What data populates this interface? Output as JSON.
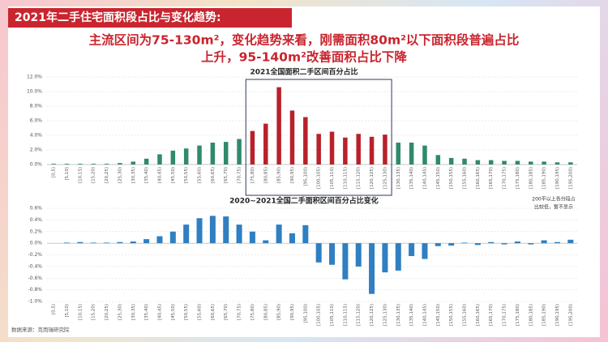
{
  "header": {
    "title": "2021年二手住宅面积段占比与变化趋势:",
    "subtitle": [
      "主流区间为75-130m²，变化趋势来看，刚需面积80m²以下面积段普遍占比",
      "上升，95-140m²改善面积占比下降"
    ]
  },
  "chart_data": [
    {
      "type": "bar",
      "title": "2021全国面积二手区间百分占比",
      "categories": [
        "[0,5)",
        "[5,10)",
        "[10,15)",
        "[15,20)",
        "[20,25)",
        "[25,30)",
        "[30,35)",
        "[35,40)",
        "[40,45)",
        "[45,50)",
        "[50,55)",
        "[55,60)",
        "[60,65)",
        "[65,70)",
        "[70,75)",
        "[75,80)",
        "[80,85)",
        "[85,90)",
        "[90,95)",
        "[95,100)",
        "[100,105)",
        "[105,110)",
        "[110,115)",
        "[115,120)",
        "[120,125)",
        "[125,130)",
        "[130,135)",
        "[135,140)",
        "[140,145)",
        "[145,150)",
        "[150,155)",
        "[155,160)",
        "[160,165)",
        "[165,170)",
        "[170,175)",
        "[175,180)",
        "[180,185)",
        "[185,190)",
        "[190,195)",
        "[195,200)"
      ],
      "values": [
        0.1,
        0.1,
        0.1,
        0.1,
        0.1,
        0.2,
        0.4,
        0.8,
        1.4,
        1.9,
        2.2,
        2.6,
        3.0,
        3.1,
        3.5,
        4.6,
        5.6,
        10.6,
        7.4,
        6.5,
        4.2,
        4.5,
        3.7,
        4.2,
        3.8,
        4.1,
        3.0,
        3.0,
        2.6,
        1.3,
        0.9,
        0.8,
        0.6,
        0.6,
        0.5,
        0.5,
        0.4,
        0.4,
        0.3,
        0.3
      ],
      "colors": [
        "#2f8a6c",
        "#2f8a6c",
        "#2f8a6c",
        "#2f8a6c",
        "#2f8a6c",
        "#2f8a6c",
        "#2f8a6c",
        "#2f8a6c",
        "#2f8a6c",
        "#2f8a6c",
        "#2f8a6c",
        "#2f8a6c",
        "#2f8a6c",
        "#2f8a6c",
        "#2f8a6c",
        "#b8212b",
        "#b8212b",
        "#b8212b",
        "#b8212b",
        "#b8212b",
        "#b8212b",
        "#b8212b",
        "#b8212b",
        "#b8212b",
        "#b8212b",
        "#b8212b",
        "#2f8a6c",
        "#2f8a6c",
        "#2f8a6c",
        "#2f8a6c",
        "#2f8a6c",
        "#2f8a6c",
        "#2f8a6c",
        "#2f8a6c",
        "#2f8a6c",
        "#2f8a6c",
        "#2f8a6c",
        "#2f8a6c",
        "#2f8a6c",
        "#2f8a6c"
      ],
      "ylim": [
        0,
        12
      ],
      "yticks": [
        {
          "value": 0,
          "label": "0.0%"
        },
        {
          "value": 2,
          "label": "2.0%"
        },
        {
          "value": 4,
          "label": "4.0%"
        },
        {
          "value": 6,
          "label": "6.0%"
        },
        {
          "value": 8,
          "label": "8.0%"
        },
        {
          "value": 10,
          "label": "10.0%"
        },
        {
          "value": 12,
          "label": "12.0%"
        }
      ],
      "grid": true
    },
    {
      "type": "bar",
      "title": "2020~2021全国二手面积区间百分占比变化",
      "categories": [
        "[0,5)",
        "[5,10)",
        "[10,15)",
        "[15,20)",
        "[20,25)",
        "[25,30)",
        "[30,35)",
        "[35,40)",
        "[40,45)",
        "[45,50)",
        "[50,55)",
        "[55,60)",
        "[60,65)",
        "[65,70)",
        "[70,75)",
        "[75,80)",
        "[80,85)",
        "[85,90)",
        "[90,95)",
        "[95,100)",
        "[100,105)",
        "[105,110)",
        "[110,115)",
        "[115,120)",
        "[120,125)",
        "[125,130)",
        "[130,135)",
        "[135,140)",
        "[140,145)",
        "[145,150)",
        "[150,155)",
        "[155,160)",
        "[160,165)",
        "[165,170)",
        "[170,175)",
        "[175,180)",
        "[180,185)",
        "[185,190)",
        "[190,195)",
        "[195,200)"
      ],
      "values": [
        0.0,
        0.01,
        0.02,
        0.01,
        0.01,
        0.02,
        0.03,
        0.07,
        0.12,
        0.2,
        0.32,
        0.43,
        0.47,
        0.46,
        0.32,
        0.2,
        0.05,
        0.32,
        0.17,
        0.31,
        -0.33,
        -0.37,
        -0.62,
        -0.4,
        -0.87,
        -0.5,
        -0.47,
        -0.22,
        -0.27,
        -0.05,
        -0.04,
        0.01,
        -0.03,
        0.02,
        -0.02,
        0.03,
        -0.02,
        0.05,
        0.02,
        0.06
      ],
      "color": "#2f7fc1",
      "ylim": [
        -1.0,
        0.6
      ],
      "yticks": [
        {
          "value": -1.0,
          "label": "-1.0%"
        },
        {
          "value": -0.8,
          "label": "-0.8%"
        },
        {
          "value": -0.6,
          "label": "-0.6%"
        },
        {
          "value": -0.4,
          "label": "-0.4%"
        },
        {
          "value": -0.2,
          "label": "-0.2%"
        },
        {
          "value": 0,
          "label": "0.0%"
        },
        {
          "value": 0.2,
          "label": "0.2%"
        },
        {
          "value": 0.4,
          "label": "0.4%"
        },
        {
          "value": 0.6,
          "label": "0.6%"
        }
      ],
      "grid": true,
      "annotation": [
        "200平以上各分段占",
        "比较低，暂不显示"
      ]
    }
  ],
  "source": "数据来源：克而瑞研究院"
}
